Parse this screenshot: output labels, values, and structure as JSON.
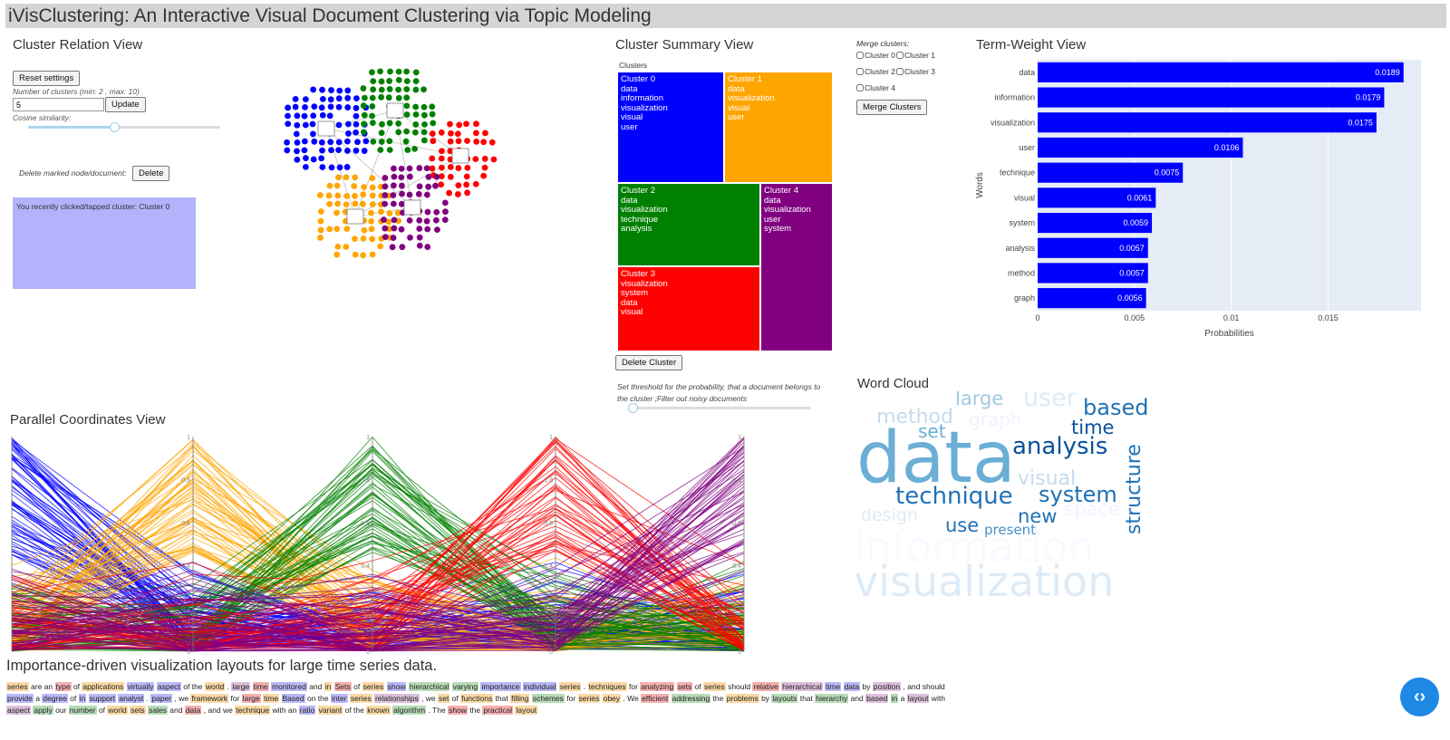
{
  "app": {
    "title": "iVisClustering: An Interactive Visual Document Clustering via Topic Modeling"
  },
  "cluster_relation": {
    "title": "Cluster Relation View",
    "reset_label": "Reset settings",
    "num_clusters_label": "Number of clusters (min: 2 , max: 10)",
    "num_clusters_value": "5",
    "update_label": "Update",
    "cosine_label": "Cosine similarity:",
    "cosine_slider_value": 0.45,
    "delete_label": "Delete marked node/document:",
    "delete_button": "Delete",
    "info_text": "You recently clicked/tapped cluster: Cluster 0"
  },
  "cluster_summary": {
    "title": "Cluster Summary View",
    "treemap_label": "Clusters",
    "clusters": [
      {
        "name": "Cluster 0",
        "words": [
          "data",
          "information",
          "visualization",
          "visual",
          "user"
        ],
        "color": "#0000ff"
      },
      {
        "name": "Cluster 1",
        "words": [
          "data",
          "visualization",
          "visual",
          "user"
        ],
        "color": "#ffa500"
      },
      {
        "name": "Cluster 2",
        "words": [
          "data",
          "visualization",
          "technique",
          "analysis"
        ],
        "color": "#008000"
      },
      {
        "name": "Cluster 3",
        "words": [
          "visualization",
          "system",
          "data",
          "visual"
        ],
        "color": "#ff0000"
      },
      {
        "name": "Cluster 4",
        "words": [
          "data",
          "visualization",
          "user",
          "system"
        ],
        "color": "#800080"
      }
    ],
    "delete_cluster_label": "Delete Cluster",
    "threshold_label": "Set threshold for the probability, that a document belongs to the cluster ;Filter out noisy documents",
    "threshold_value": 0.0
  },
  "merge": {
    "label": "Merge clusters:",
    "options": [
      "Cluster 0",
      "Cluster 1",
      "Cluster 2",
      "Cluster 3",
      "Cluster 4"
    ],
    "button_label": "Merge Clusters"
  },
  "term_weight": {
    "title": "Term-Weight View",
    "chart_data": {
      "type": "bar",
      "orientation": "horizontal",
      "categories": [
        "data",
        "information",
        "visualization",
        "user",
        "technique",
        "visual",
        "system",
        "analysis",
        "method",
        "graph"
      ],
      "values": [
        0.0189,
        0.0179,
        0.0175,
        0.0106,
        0.0075,
        0.0061,
        0.0059,
        0.0057,
        0.0057,
        0.0056
      ],
      "value_labels": [
        "0.0189",
        "0.0179",
        "0.0175",
        "0.0106",
        "0.0075",
        "0.0061",
        "0.0059",
        "0.0057",
        "0.0057",
        "0.0056"
      ],
      "xlabel": "Probabilities",
      "ylabel": "Words",
      "xlim": [
        0,
        0.0198
      ],
      "xticks": [
        "0",
        "0.005",
        "0.01",
        "0.015"
      ],
      "xtick_values": [
        0,
        0.005,
        0.01,
        0.015
      ],
      "bar_color": "#0000ff",
      "plot_bg": "#e5ecf6",
      "grid": true
    }
  },
  "word_cloud": {
    "title": "Word Cloud",
    "words": [
      {
        "text": "data",
        "color": "#6baed6"
      },
      {
        "text": "visualization",
        "color": "#deebf7"
      },
      {
        "text": "information",
        "color": "#f7fbff"
      },
      {
        "text": "analysis",
        "color": "#08519c"
      },
      {
        "text": "technique",
        "color": "#2171b5"
      },
      {
        "text": "system",
        "color": "#2171b5"
      },
      {
        "text": "structure",
        "color": "#2171b5"
      },
      {
        "text": "based",
        "color": "#2171b5"
      },
      {
        "text": "time",
        "color": "#08519c"
      },
      {
        "text": "user",
        "color": "#deebf7"
      },
      {
        "text": "large",
        "color": "#9ecae1"
      },
      {
        "text": "method",
        "color": "#c6dbef"
      },
      {
        "text": "graph",
        "color": "#eff3ff"
      },
      {
        "text": "set",
        "color": "#6baed6"
      },
      {
        "text": "visual",
        "color": "#c6dbef"
      },
      {
        "text": "design",
        "color": "#deebf7"
      },
      {
        "text": "use",
        "color": "#2171b5"
      },
      {
        "text": "new",
        "color": "#2171b5"
      },
      {
        "text": "present",
        "color": "#4292c6"
      },
      {
        "text": "space",
        "color": "#eff3ff"
      }
    ]
  },
  "parallel": {
    "title": "Parallel Coordinates View",
    "axis_ticks": [
      "0",
      "0.2",
      "0.4",
      "0.6",
      "0.8",
      "1"
    ],
    "cluster_colors": [
      "#0000ff",
      "#ffa500",
      "#008000",
      "#ff0000",
      "#800080"
    ]
  },
  "document": {
    "title": "Importance-driven visualization layouts for large time series data.",
    "tokens": [
      [
        "series",
        "#f9d9a6"
      ],
      [
        " are an ",
        ""
      ],
      [
        "type",
        "#f5b0b0"
      ],
      [
        " of ",
        ""
      ],
      [
        "applications",
        "#f9d9a6"
      ],
      [
        " ",
        ""
      ],
      [
        "virtually",
        "#b9b9f7"
      ],
      [
        " ",
        ""
      ],
      [
        "aspect",
        "#b9b9f7"
      ],
      [
        " of the ",
        ""
      ],
      [
        "world",
        "#f9d9a6"
      ],
      [
        " . ",
        ""
      ],
      [
        "large",
        "#dcc0dc"
      ],
      [
        " ",
        ""
      ],
      [
        "time",
        "#f5b0b0"
      ],
      [
        " ",
        ""
      ],
      [
        "monitored",
        "#b9b9f7"
      ],
      [
        " and ",
        ""
      ],
      [
        "in",
        "#f9d9a6"
      ],
      [
        " ",
        ""
      ],
      [
        "Sets",
        "#f5b0b0"
      ],
      [
        " of ",
        ""
      ],
      [
        "series",
        "#f9d9a6"
      ],
      [
        " ",
        ""
      ],
      [
        "show",
        "#b9b9f7"
      ],
      [
        " ",
        ""
      ],
      [
        "hierarchical",
        "#b8dbb8"
      ],
      [
        " ",
        ""
      ],
      [
        "varying",
        "#b8dbb8"
      ],
      [
        " ",
        ""
      ],
      [
        "importance",
        "#b9b9f7"
      ],
      [
        " ",
        ""
      ],
      [
        "individual",
        "#b9b9f7"
      ],
      [
        " ",
        ""
      ],
      [
        "series",
        "#f9d9a6"
      ],
      [
        " . ",
        ""
      ],
      [
        "techniques",
        "#f9d9a6"
      ],
      [
        " for ",
        ""
      ],
      [
        "analyzing",
        "#f5b0b0"
      ],
      [
        " ",
        ""
      ],
      [
        "sets",
        "#f5b0b0"
      ],
      [
        " of ",
        ""
      ],
      [
        "series",
        "#f9d9a6"
      ],
      [
        " should ",
        ""
      ],
      [
        "relative",
        "#f5b0b0"
      ],
      [
        " ",
        ""
      ],
      [
        "hierarchical",
        "#dcc0dc"
      ],
      [
        " ",
        ""
      ],
      [
        "time",
        "#b9b9f7"
      ],
      [
        " ",
        ""
      ],
      [
        "data",
        "#b9b9f7"
      ],
      [
        " by ",
        ""
      ],
      [
        "position",
        "#dcc0dc"
      ],
      [
        " , and should ",
        ""
      ],
      [
        "provide",
        "#b9b9f7"
      ],
      [
        " a ",
        ""
      ],
      [
        "degree",
        "#b9b9f7"
      ],
      [
        " of ",
        ""
      ],
      [
        "in",
        "#b9b9f7"
      ],
      [
        " ",
        ""
      ],
      [
        "support",
        "#b9b9f7"
      ],
      [
        " ",
        ""
      ],
      [
        "analyst",
        "#b9b9f7"
      ],
      [
        " . ",
        ""
      ],
      [
        "paper",
        "#b9b9f7"
      ],
      [
        " , we ",
        ""
      ],
      [
        "framework",
        "#f9d9a6"
      ],
      [
        " for ",
        ""
      ],
      [
        "large",
        "#f5b0b0"
      ],
      [
        " ",
        ""
      ],
      [
        "time",
        "#f9d9a6"
      ],
      [
        " ",
        ""
      ],
      [
        "Based",
        "#b9b9f7"
      ],
      [
        " on the ",
        ""
      ],
      [
        "inter",
        "#b9b9f7"
      ],
      [
        " ",
        ""
      ],
      [
        "series",
        "#f9d9a6"
      ],
      [
        " ",
        ""
      ],
      [
        "relationships",
        "#dcc0dc"
      ],
      [
        " , we ",
        ""
      ],
      [
        "set",
        "#f9d9a6"
      ],
      [
        " of ",
        ""
      ],
      [
        "functions",
        "#f9d9a6"
      ],
      [
        " that ",
        ""
      ],
      [
        "filling",
        "#f9d9a6"
      ],
      [
        " ",
        ""
      ],
      [
        "schemes",
        "#b8dbb8"
      ],
      [
        " for ",
        ""
      ],
      [
        "series",
        "#f9d9a6"
      ],
      [
        " ",
        ""
      ],
      [
        "obey",
        "#f9d9a6"
      ],
      [
        " . We ",
        ""
      ],
      [
        "efficient",
        "#f5b0b0"
      ],
      [
        " ",
        ""
      ],
      [
        "addressing",
        "#b8dbb8"
      ],
      [
        " the ",
        ""
      ],
      [
        "problems",
        "#f9d9a6"
      ],
      [
        " by ",
        ""
      ],
      [
        "layouts",
        "#b8dbb8"
      ],
      [
        " that ",
        ""
      ],
      [
        "hierarchy",
        "#b8dbb8"
      ],
      [
        " and ",
        ""
      ],
      [
        "based",
        "#dcc0dc"
      ],
      [
        " ",
        ""
      ],
      [
        "in",
        "#b8dbb8"
      ],
      [
        " a ",
        ""
      ],
      [
        "layout",
        "#dcc0dc"
      ],
      [
        " with ",
        ""
      ],
      [
        "aspect",
        "#dcc0dc"
      ],
      [
        " ",
        ""
      ],
      [
        "apply",
        "#b8dbb8"
      ],
      [
        " our ",
        ""
      ],
      [
        "number",
        "#b8dbb8"
      ],
      [
        " of ",
        ""
      ],
      [
        "world",
        "#f9d9a6"
      ],
      [
        " ",
        ""
      ],
      [
        "sets",
        "#f9d9a6"
      ],
      [
        " ",
        ""
      ],
      [
        "sales",
        "#b8dbb8"
      ],
      [
        " and ",
        ""
      ],
      [
        "data",
        "#f5b0b0"
      ],
      [
        " , and we ",
        ""
      ],
      [
        "technique",
        "#f9d9a6"
      ],
      [
        " with an ",
        ""
      ],
      [
        "ratio",
        "#b9b9f7"
      ],
      [
        " ",
        ""
      ],
      [
        "variant",
        "#f9d9a6"
      ],
      [
        " of the ",
        ""
      ],
      [
        "known",
        "#f9d9a6"
      ],
      [
        " ",
        ""
      ],
      [
        "algorithm",
        "#b8dbb8"
      ],
      [
        " . The ",
        ""
      ],
      [
        "show",
        "#f5b0b0"
      ],
      [
        " the ",
        ""
      ],
      [
        "practical",
        "#f5b0b0"
      ],
      [
        " ",
        ""
      ],
      [
        "layout",
        "#f9d9a6"
      ]
    ]
  },
  "fab": {
    "icon": "code-chevrons-icon",
    "label": "‹›"
  }
}
